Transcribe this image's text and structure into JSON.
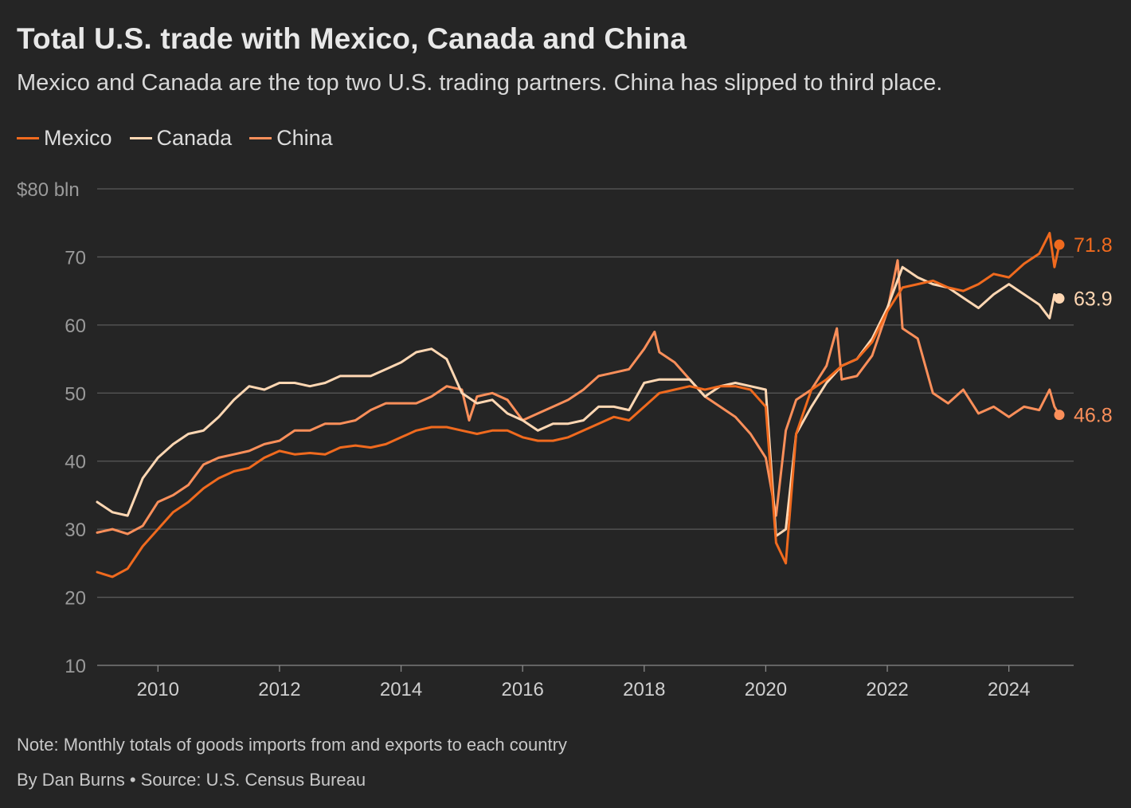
{
  "title": "Total U.S. trade with Mexico, Canada and China",
  "subtitle": "Mexico and Canada are the top two U.S. trading partners. China has slipped to third place.",
  "note": "Note: Monthly totals of goods imports from and exports to each country",
  "source": "By Dan Burns • Source: U.S. Census Bureau",
  "chart_data": {
    "type": "line",
    "ylabel": "",
    "ylim": [
      10,
      80
    ],
    "y_ticks": [
      {
        "value": 80,
        "label": "$80 bln"
      },
      {
        "value": 70,
        "label": "70"
      },
      {
        "value": 60,
        "label": "60"
      },
      {
        "value": 50,
        "label": "50"
      },
      {
        "value": 40,
        "label": "40"
      },
      {
        "value": 30,
        "label": "30"
      },
      {
        "value": 20,
        "label": "20"
      },
      {
        "value": 10,
        "label": "10"
      }
    ],
    "xlim": [
      2009.0,
      2024.83
    ],
    "x_ticks": [
      2010,
      2012,
      2014,
      2016,
      2018,
      2020,
      2022,
      2024
    ],
    "grid": true,
    "legend_position": "top-left",
    "series": [
      {
        "name": "Mexico",
        "color": "#f06a1e",
        "end_label": "71.8",
        "x": [
          2009.0,
          2009.25,
          2009.5,
          2009.75,
          2010.0,
          2010.25,
          2010.5,
          2010.75,
          2011.0,
          2011.25,
          2011.5,
          2011.75,
          2012.0,
          2012.25,
          2012.5,
          2012.75,
          2013.0,
          2013.25,
          2013.5,
          2013.75,
          2014.0,
          2014.25,
          2014.5,
          2014.75,
          2015.0,
          2015.25,
          2015.5,
          2015.75,
          2016.0,
          2016.25,
          2016.5,
          2016.75,
          2017.0,
          2017.25,
          2017.5,
          2017.75,
          2018.0,
          2018.25,
          2018.5,
          2018.75,
          2019.0,
          2019.25,
          2019.5,
          2019.75,
          2020.0,
          2020.17,
          2020.33,
          2020.5,
          2020.75,
          2021.0,
          2021.25,
          2021.5,
          2021.75,
          2022.0,
          2022.25,
          2022.5,
          2022.75,
          2023.0,
          2023.25,
          2023.5,
          2023.75,
          2024.0,
          2024.25,
          2024.5,
          2024.67,
          2024.75,
          2024.83
        ],
        "values": [
          23.7,
          23.0,
          24.2,
          27.5,
          30.0,
          32.5,
          34.0,
          36.0,
          37.5,
          38.5,
          39.0,
          40.5,
          41.5,
          41.0,
          41.2,
          41.0,
          42.0,
          42.3,
          42.0,
          42.5,
          43.5,
          44.5,
          45.0,
          45.0,
          44.5,
          44.0,
          44.5,
          44.5,
          43.5,
          43.0,
          43.0,
          43.5,
          44.5,
          45.5,
          46.5,
          46.0,
          48.0,
          50.0,
          50.5,
          51.0,
          50.5,
          51.0,
          51.0,
          50.5,
          48.0,
          28.0,
          25.0,
          44.0,
          50.5,
          52.0,
          54.0,
          55.0,
          57.5,
          62.0,
          65.5,
          66.0,
          66.5,
          65.5,
          65.0,
          66.0,
          67.5,
          67.0,
          69.0,
          70.5,
          73.5,
          68.5,
          71.8
        ]
      },
      {
        "name": "Canada",
        "color": "#ffd7b3",
        "end_label": "63.9",
        "x": [
          2009.0,
          2009.25,
          2009.5,
          2009.75,
          2010.0,
          2010.25,
          2010.5,
          2010.75,
          2011.0,
          2011.25,
          2011.5,
          2011.75,
          2012.0,
          2012.25,
          2012.5,
          2012.75,
          2013.0,
          2013.25,
          2013.5,
          2013.75,
          2014.0,
          2014.25,
          2014.5,
          2014.75,
          2015.0,
          2015.25,
          2015.5,
          2015.75,
          2016.0,
          2016.25,
          2016.5,
          2016.75,
          2017.0,
          2017.25,
          2017.5,
          2017.75,
          2018.0,
          2018.25,
          2018.5,
          2018.75,
          2019.0,
          2019.25,
          2019.5,
          2019.75,
          2020.0,
          2020.17,
          2020.33,
          2020.5,
          2020.75,
          2021.0,
          2021.25,
          2021.5,
          2021.75,
          2022.0,
          2022.25,
          2022.5,
          2022.75,
          2023.0,
          2023.25,
          2023.5,
          2023.75,
          2024.0,
          2024.25,
          2024.5,
          2024.67,
          2024.75,
          2024.83
        ],
        "values": [
          34.0,
          32.5,
          32.0,
          37.5,
          40.5,
          42.5,
          44.0,
          44.5,
          46.5,
          49.0,
          51.0,
          50.5,
          51.5,
          51.5,
          51.0,
          51.5,
          52.5,
          52.5,
          52.5,
          53.5,
          54.5,
          56.0,
          56.5,
          55.0,
          50.0,
          48.5,
          49.0,
          47.0,
          46.0,
          44.5,
          45.5,
          45.5,
          46.0,
          48.0,
          48.0,
          47.5,
          51.5,
          52.0,
          52.0,
          52.0,
          49.5,
          51.0,
          51.5,
          51.0,
          50.5,
          29.0,
          30.0,
          44.0,
          48.0,
          51.5,
          54.0,
          55.0,
          58.0,
          62.5,
          68.5,
          67.0,
          66.0,
          65.5,
          64.0,
          62.5,
          64.5,
          66.0,
          64.5,
          63.0,
          61.0,
          64.5,
          63.9
        ]
      },
      {
        "name": "China",
        "color": "#fb8f5a",
        "end_label": "46.8",
        "x": [
          2009.0,
          2009.25,
          2009.5,
          2009.75,
          2010.0,
          2010.25,
          2010.5,
          2010.75,
          2011.0,
          2011.25,
          2011.5,
          2011.75,
          2012.0,
          2012.25,
          2012.5,
          2012.75,
          2013.0,
          2013.25,
          2013.5,
          2013.75,
          2014.0,
          2014.25,
          2014.5,
          2014.75,
          2015.0,
          2015.12,
          2015.25,
          2015.5,
          2015.75,
          2016.0,
          2016.25,
          2016.5,
          2016.75,
          2017.0,
          2017.25,
          2017.5,
          2017.75,
          2018.0,
          2018.17,
          2018.25,
          2018.5,
          2018.75,
          2019.0,
          2019.25,
          2019.5,
          2019.75,
          2020.0,
          2020.17,
          2020.33,
          2020.5,
          2020.75,
          2021.0,
          2021.17,
          2021.25,
          2021.5,
          2021.75,
          2022.0,
          2022.17,
          2022.25,
          2022.5,
          2022.75,
          2023.0,
          2023.25,
          2023.5,
          2023.75,
          2024.0,
          2024.25,
          2024.5,
          2024.67,
          2024.75,
          2024.83
        ],
        "values": [
          29.5,
          30.0,
          29.3,
          30.5,
          34.0,
          35.0,
          36.5,
          39.5,
          40.5,
          41.0,
          41.5,
          42.5,
          43.0,
          44.5,
          44.5,
          45.5,
          45.5,
          46.0,
          47.5,
          48.5,
          48.5,
          48.5,
          49.5,
          51.0,
          50.5,
          46.0,
          49.5,
          50.0,
          49.0,
          46.0,
          47.0,
          48.0,
          49.0,
          50.5,
          52.5,
          53.0,
          53.5,
          56.5,
          59.0,
          56.0,
          54.5,
          52.0,
          49.5,
          48.0,
          46.5,
          44.0,
          40.5,
          32.0,
          44.5,
          49.0,
          50.5,
          54.0,
          59.5,
          52.0,
          52.5,
          55.5,
          62.0,
          69.5,
          59.5,
          58.0,
          50.0,
          48.5,
          50.5,
          47.0,
          48.0,
          46.5,
          48.0,
          47.5,
          50.5,
          48.0,
          46.8
        ]
      }
    ]
  }
}
